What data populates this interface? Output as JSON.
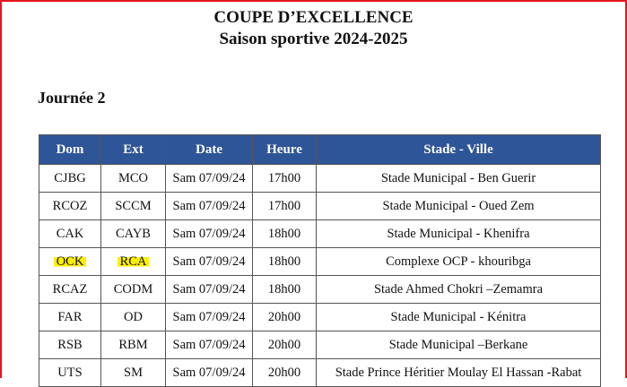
{
  "title": "COUPE D’EXCELLENCE",
  "subtitle": "Saison sportive 2024-2025",
  "section": "Journée 2",
  "highlight_color": "#ffef00",
  "header_color": "#2e5597",
  "columns": [
    "Dom",
    "Ext",
    "Date",
    "Heure",
    "Stade - Ville"
  ],
  "rows": [
    [
      "CJBG",
      "MCO",
      "Sam 07/09/24",
      "17h00",
      "Stade Municipal - Ben Guerir"
    ],
    [
      "RCOZ",
      "SCCM",
      "Sam 07/09/24",
      "17h00",
      "Stade Municipal - Oued Zem"
    ],
    [
      "CAK",
      "CAYB",
      "Sam 07/09/24",
      "18h00",
      "Stade Municipal - Khenifra"
    ],
    [
      "OCK",
      "RCA",
      "Sam 07/09/24",
      "18h00",
      "Complexe OCP - khouribga"
    ],
    [
      "RCAZ",
      "CODM",
      "Sam 07/09/24",
      "18h00",
      "Stade Ahmed Chokri –Zemamra"
    ],
    [
      "FAR",
      "OD",
      "Sam 07/09/24",
      "20h00",
      "Stade Municipal - Kénitra"
    ],
    [
      "RSB",
      "RBM",
      "Sam 07/09/24",
      "20h00",
      "Stade Municipal –Berkane"
    ],
    [
      "UTS",
      "SM",
      "Sam 07/09/24",
      "20h00",
      "Stade Prince Héritier Moulay El Hassan -Rabat"
    ]
  ],
  "highlighted_row": 3
}
